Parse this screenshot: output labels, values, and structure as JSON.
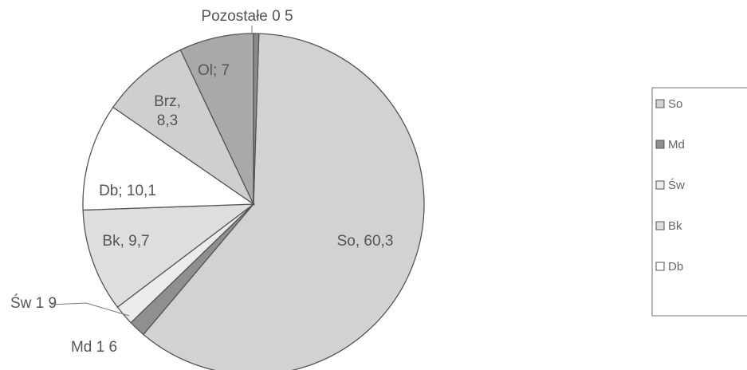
{
  "chart_data": {
    "type": "pie",
    "slices": [
      {
        "label": "So",
        "value": 60.3,
        "text": "So, 60,3",
        "color": "#d2d2d2"
      },
      {
        "label": "Md",
        "value": 1.6,
        "text": "Md  1 6",
        "color": "#8f8f8f"
      },
      {
        "label": "Św",
        "value": 1.9,
        "text": "Św  1 9",
        "color": "#ececec"
      },
      {
        "label": "Bk",
        "value": 9.7,
        "text": "Bk, 9,7",
        "color": "#dedede"
      },
      {
        "label": "Db",
        "value": 10.1,
        "text": "Db;  10,1",
        "color": "#ffffff"
      },
      {
        "label": "Brz",
        "value": 8.3,
        "text": "Brz,\n8,3",
        "color": "#cfcfcf"
      },
      {
        "label": "Ol",
        "value": 7,
        "text": "Ol; 7",
        "color": "#a9a9a9"
      },
      {
        "label": "Pozostałe",
        "value": 0.5,
        "text": "Pozostałe  0 5",
        "color": "#8a8a8a"
      }
    ],
    "legend": {
      "placement": "right",
      "entries": [
        {
          "label": "So",
          "color": "#d2d2d2"
        },
        {
          "label": "Md",
          "color": "#8f8f8f"
        },
        {
          "label": "Św",
          "color": "#ececec"
        },
        {
          "label": "Bk",
          "color": "#dedede"
        },
        {
          "label": "Db",
          "color": "#ffffff"
        }
      ]
    }
  }
}
